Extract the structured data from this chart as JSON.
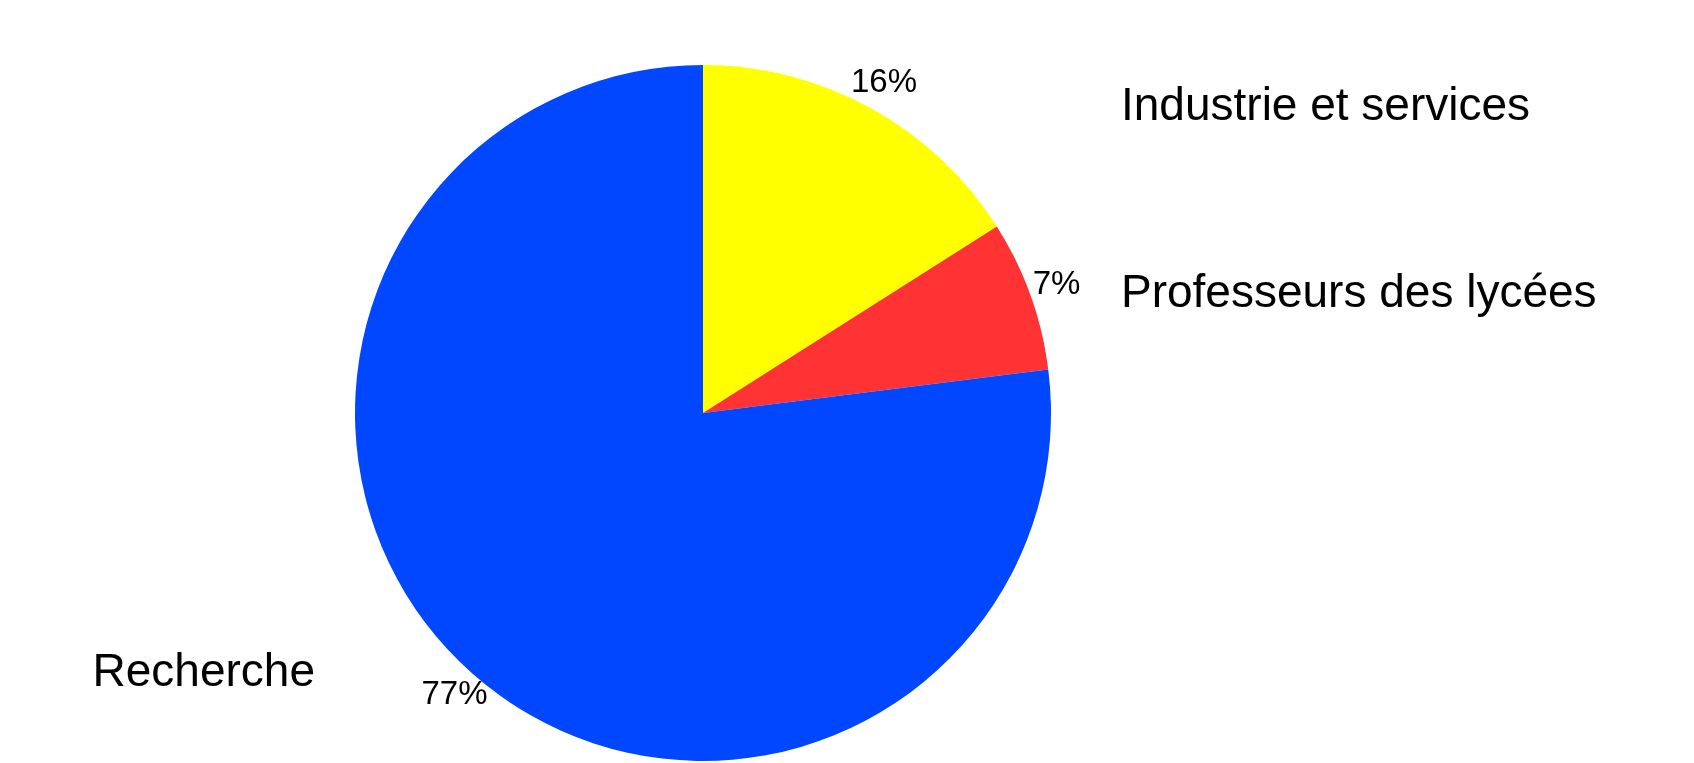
{
  "chart_data": {
    "type": "pie",
    "categories": [
      "Industrie et services",
      "Professeurs des lycées",
      "Recherche"
    ],
    "values": [
      16,
      7,
      77
    ],
    "colors": [
      "#ffff00",
      "#ff3333",
      "#0047ff"
    ],
    "value_labels": [
      "16%",
      "7%",
      "77%"
    ]
  }
}
